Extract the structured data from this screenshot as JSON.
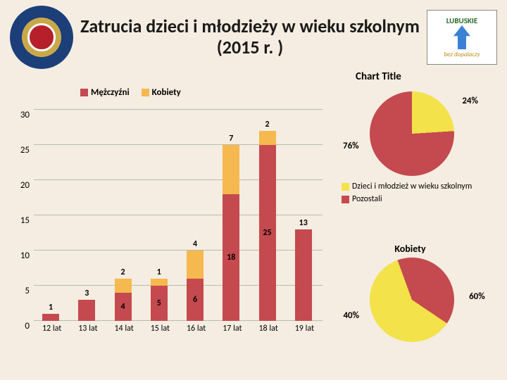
{
  "title": "Zatrucia dzieci i młodzieży w wieku szkolnym (2015 r. )",
  "logo_right_top": "LUBUSKIE",
  "logo_right_bottom": "bez dopalaczy",
  "chart_title": "Chart Title",
  "bar_chart": {
    "type": "stacked_bar",
    "series": [
      {
        "name": "Mężczyźni",
        "color": "#c44a4f"
      },
      {
        "name": "Kobiety",
        "color": "#f5b94f"
      }
    ],
    "ymax": 30,
    "ytick_step": 5,
    "categories": [
      "12 lat",
      "13 lat",
      "14 lat",
      "15 lat",
      "16 lat",
      "17 lat",
      "18 lat",
      "19 lat"
    ],
    "male": [
      1,
      3,
      4,
      5,
      6,
      18,
      25,
      13
    ],
    "female": [
      0,
      0,
      2,
      1,
      4,
      7,
      2,
      0
    ],
    "grid_color": "#bba",
    "label_fontsize": 13
  },
  "pie1": {
    "type": "pie",
    "slices": [
      {
        "label": "24%",
        "value": 24,
        "color": "#f3e24a"
      },
      {
        "label": "76%",
        "value": 76,
        "color": "#c44a4f"
      }
    ],
    "legend": [
      {
        "text": "Dzieci i młodzież w wieku szkolnym",
        "color": "#f3e24a"
      },
      {
        "text": "Pozostali",
        "color": "#c44a4f"
      }
    ]
  },
  "pie2": {
    "title": "Kobiety",
    "type": "pie",
    "slices": [
      {
        "label": "40%",
        "value": 40,
        "color": "#c44a4f"
      },
      {
        "label": "60%",
        "value": 60,
        "color": "#f3e24a"
      }
    ]
  },
  "colors": {
    "background": "#f5ede1",
    "text": "#1a1a1a"
  }
}
